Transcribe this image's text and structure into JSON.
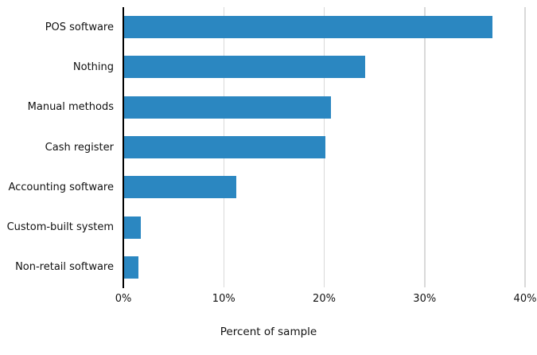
{
  "chart_data": {
    "type": "bar",
    "orientation": "horizontal",
    "title": "",
    "xlabel": "Percent of sample",
    "ylabel": "",
    "categories": [
      "POS software",
      "Nothing",
      "Manual methods",
      "Cash register",
      "Accounting software",
      "Custom-built system",
      "Non-retail software"
    ],
    "values": [
      36.7,
      24.0,
      20.6,
      20.0,
      11.2,
      1.7,
      1.4
    ],
    "xlim": [
      0,
      40
    ],
    "xticks": [
      0,
      10,
      20,
      30,
      40
    ],
    "xtick_labels": [
      "0%",
      "10%",
      "20%",
      "30%",
      "40%"
    ],
    "grid": "vertical-gridlines-at-xticks-except-zero",
    "legend": "none",
    "colors": {
      "bar": "#2b87c1",
      "axis_line": "#000000",
      "gridline": "#d9d9d9",
      "text": "#111111",
      "background": "#ffffff"
    }
  }
}
